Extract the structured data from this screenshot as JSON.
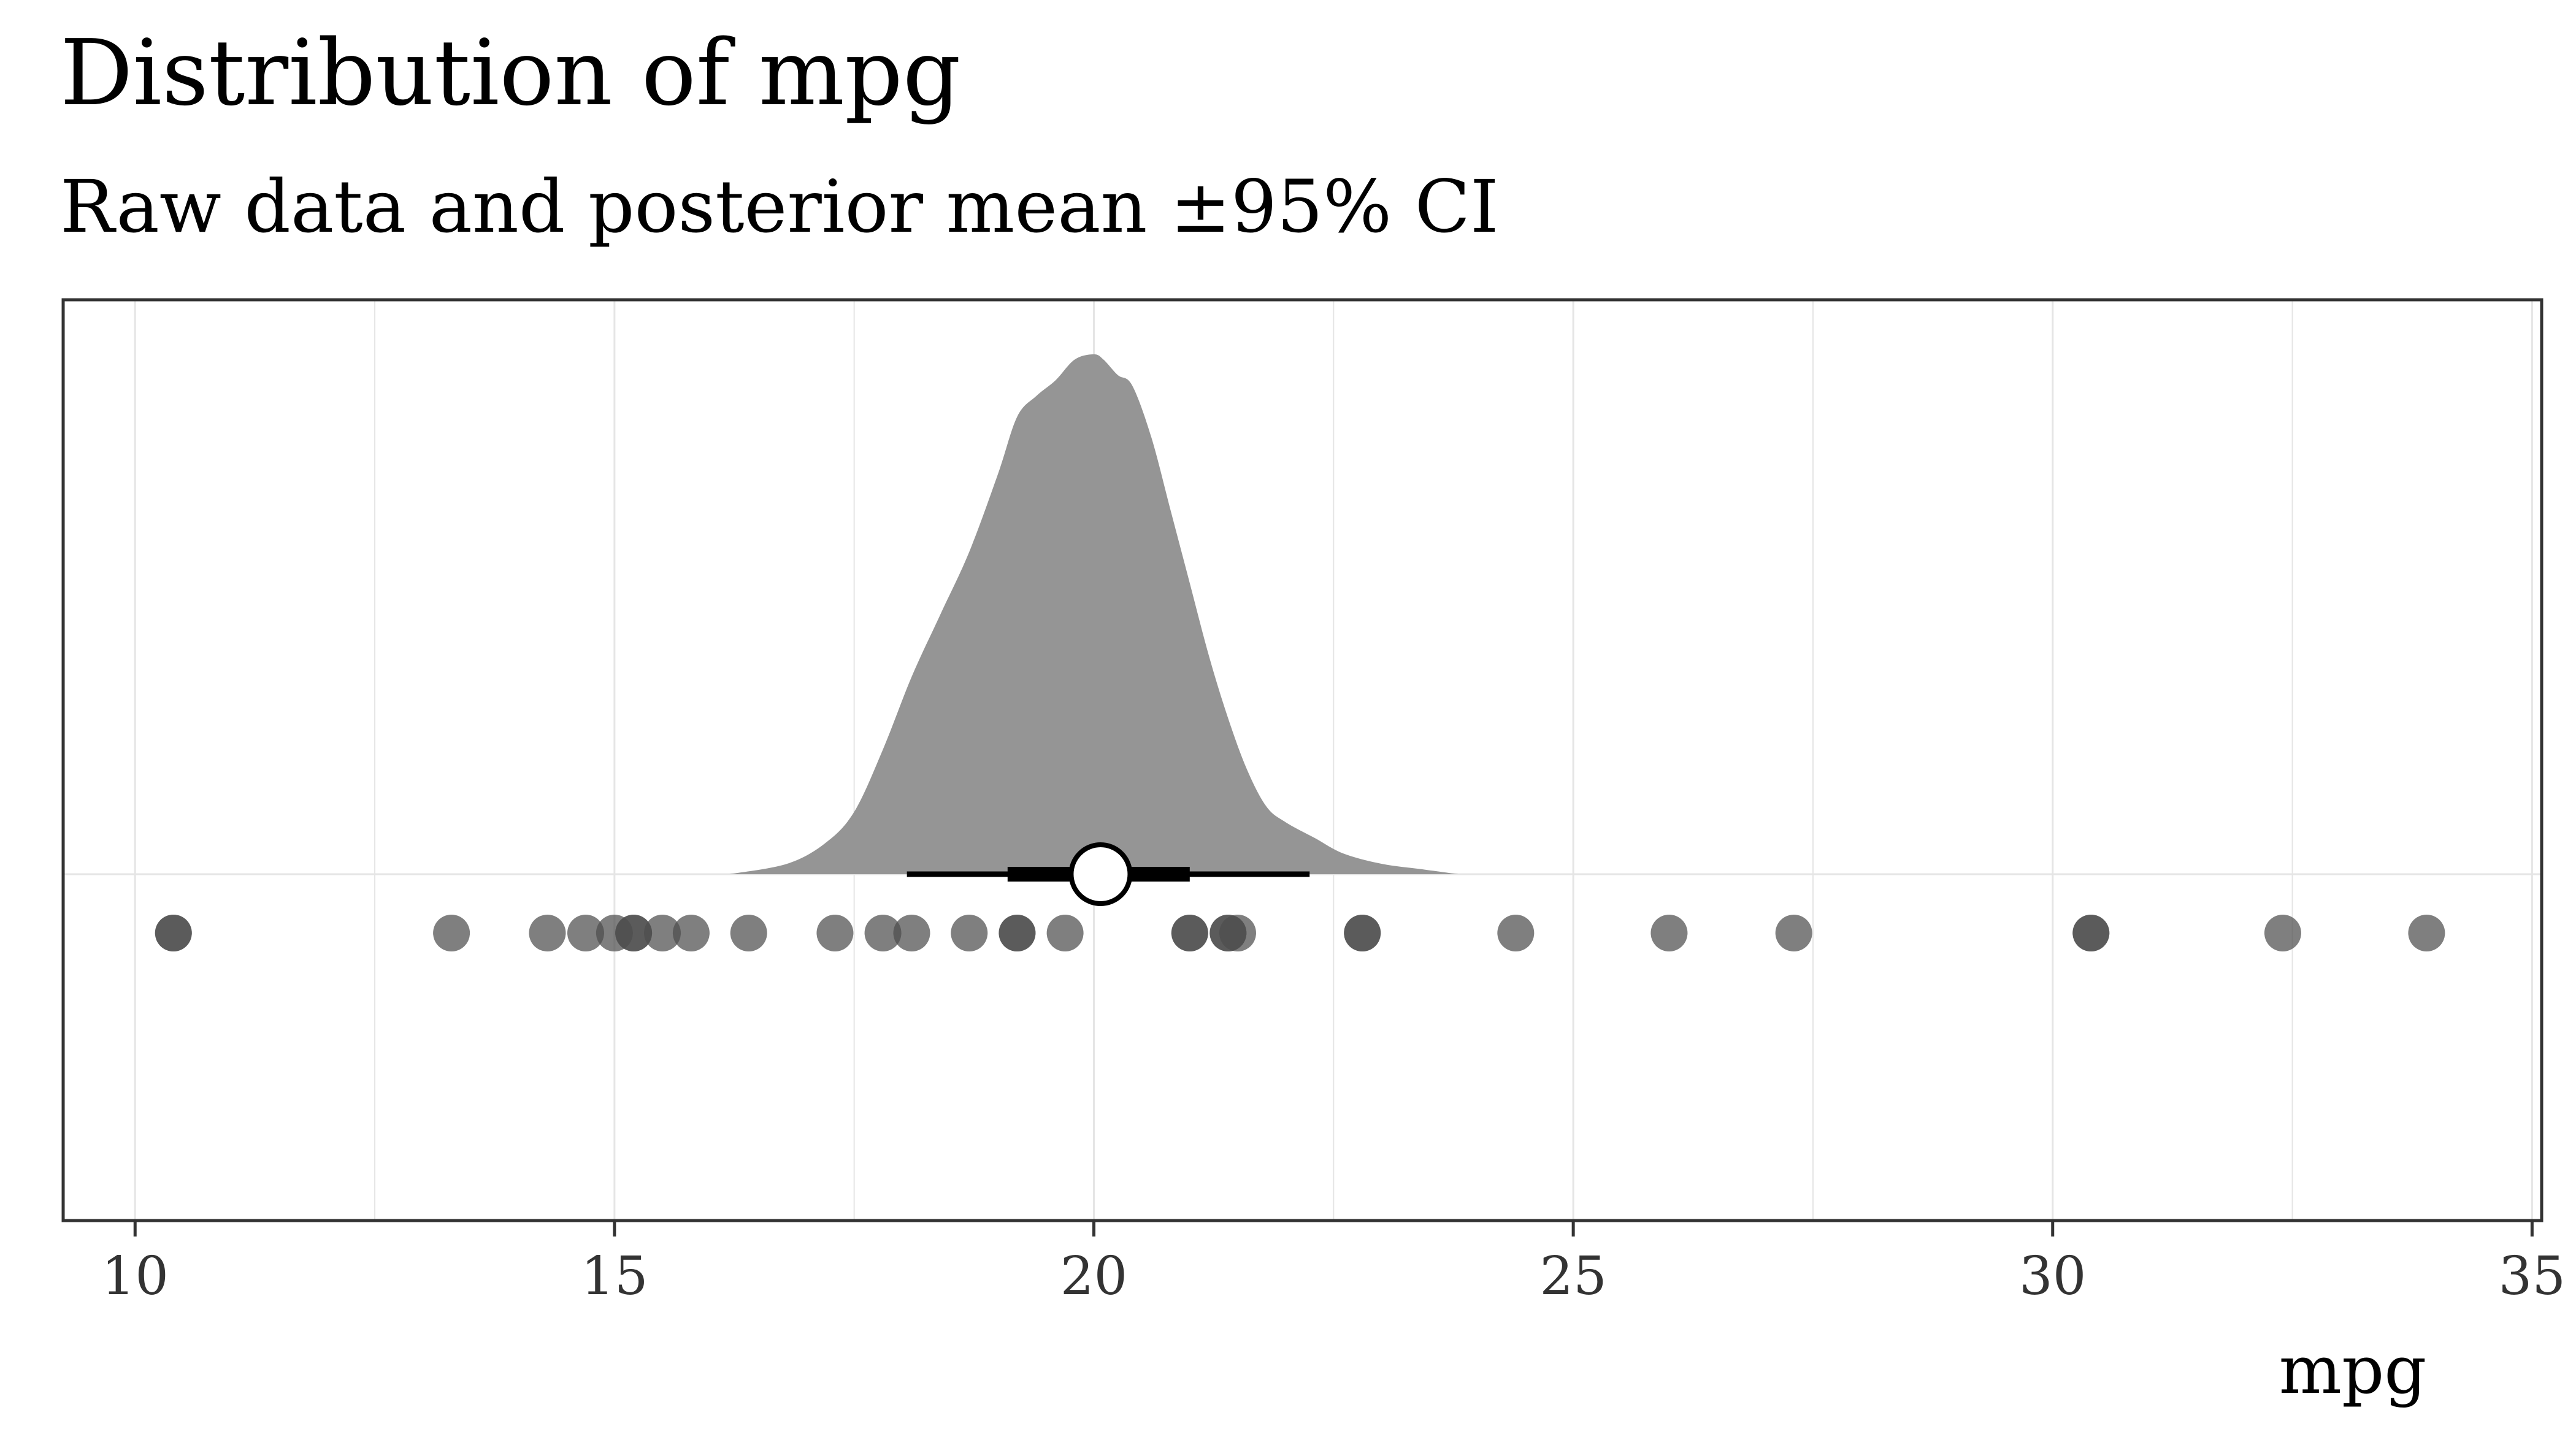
{
  "chart_data": {
    "type": "scatter",
    "title": "Distribution of mpg",
    "subtitle": "Raw data and posterior mean ±95% CI",
    "xlabel": "mpg",
    "ylabel": "",
    "xlim": [
      9.25,
      35.1
    ],
    "xticks": [
      10,
      15,
      20,
      25,
      30,
      35
    ],
    "minor_xticks": [
      12.5,
      17.5,
      22.5,
      27.5,
      32.5
    ],
    "grid": true,
    "legend": "none",
    "raw_points": [
      10.4,
      10.4,
      13.3,
      14.3,
      14.7,
      15.0,
      15.2,
      15.2,
      15.5,
      15.8,
      16.4,
      17.3,
      17.8,
      18.1,
      18.7,
      19.2,
      19.2,
      19.7,
      21.0,
      21.0,
      21.4,
      21.4,
      21.5,
      22.8,
      22.8,
      24.4,
      26.0,
      27.3,
      30.4,
      30.4,
      32.4,
      33.9
    ],
    "posterior_density": {
      "x": [
        16.2,
        16.8,
        17.2,
        17.5,
        17.8,
        18.1,
        18.4,
        18.7,
        19.0,
        19.2,
        19.4,
        19.6,
        19.8,
        20.0,
        20.1,
        20.25,
        20.4,
        20.6,
        20.8,
        21.0,
        21.2,
        21.4,
        21.6,
        21.8,
        22.0,
        22.3,
        22.6,
        23.0,
        23.4,
        23.8
      ],
      "density": [
        0.0,
        0.02,
        0.06,
        0.12,
        0.24,
        0.38,
        0.5,
        0.62,
        0.77,
        0.88,
        0.92,
        0.95,
        0.99,
        1.0,
        0.99,
        0.96,
        0.94,
        0.84,
        0.7,
        0.56,
        0.42,
        0.3,
        0.2,
        0.13,
        0.1,
        0.07,
        0.04,
        0.02,
        0.01,
        0.0
      ]
    },
    "posterior_mean": 20.07,
    "interval_66": [
      19.1,
      21.0
    ],
    "interval_95": [
      18.05,
      22.25
    ],
    "colors": {
      "density_fill": "#959595",
      "point": "#4d4d4d",
      "interval": "#000000",
      "grid": "#e5e5e5",
      "panel_border": "#333333"
    }
  }
}
